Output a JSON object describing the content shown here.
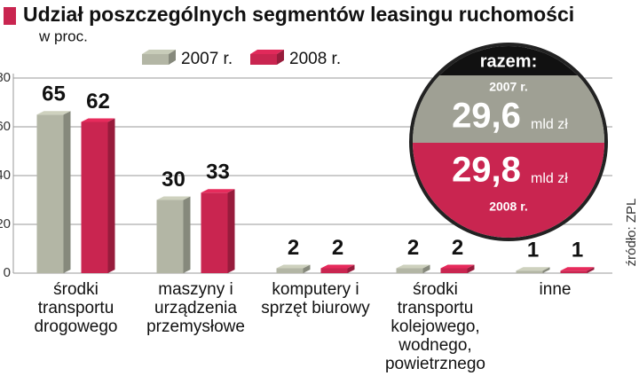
{
  "chart_data": {
    "type": "bar3d",
    "title": "Udział poszczególnych segmentów leasingu ruchomości",
    "subtitle": "w proc.",
    "categories": [
      "środki transportu drogowego",
      "maszyny i urządzenia przemysłowe",
      "komputery i sprzęt biurowy",
      "środki transportu kolejowego, wodnego, powietrznego",
      "inne"
    ],
    "series": [
      {
        "name": "2007 r.",
        "color": "#b3b6a5",
        "values": [
          65,
          30,
          2,
          2,
          1
        ]
      },
      {
        "name": "2008 r.",
        "color": "#c92550",
        "values": [
          62,
          33,
          2,
          2,
          1
        ]
      }
    ],
    "ylim": [
      0,
      80
    ],
    "yticks": [
      0,
      20,
      40,
      60,
      80
    ],
    "grid": true,
    "source": "źródło: ZPL"
  },
  "inset": {
    "title": "razem:",
    "items": [
      {
        "year": "2007 r.",
        "total": "29,6",
        "unit": "mld zł"
      },
      {
        "year": "2008 r.",
        "total": "29,8",
        "unit": "mld zł"
      }
    ]
  }
}
